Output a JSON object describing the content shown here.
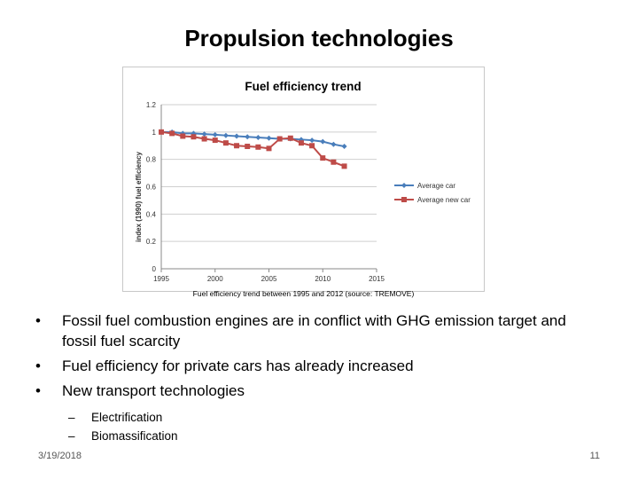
{
  "slide": {
    "title": "Propulsion technologies",
    "caption": "Fuel efficiency trend between 1995 and 2012 (source: TREMOVE)",
    "bullets": [
      "Fossil fuel combustion engines are in conflict with GHG emission target and fossil fuel scarcity",
      "Fuel efficiency for private cars has already increased",
      "New transport technologies"
    ],
    "sub_bullets": [
      "Electrification",
      "Biomassification"
    ],
    "footer": {
      "date": "3/19/2018",
      "page": "11"
    }
  },
  "chart_data": {
    "type": "line",
    "title": "Fuel efficiency trend",
    "xlabel": "",
    "ylabel": "index (1990) fuel efficiency",
    "xlim": [
      1995,
      2015
    ],
    "ylim": [
      0,
      1.2
    ],
    "x_ticks": [
      "1995",
      "2000",
      "2005",
      "2010",
      "2015"
    ],
    "y_ticks": [
      "0",
      "0.2",
      "0.4",
      "0.6",
      "0.8",
      "1",
      "1.2"
    ],
    "x_tick_values": [
      1995,
      2000,
      2005,
      2010,
      2015
    ],
    "y_tick_values": [
      0,
      0.2,
      0.4,
      0.6,
      0.8,
      1.0,
      1.2
    ],
    "grid": "horizontal",
    "legend_position": "right",
    "x": [
      1995,
      1996,
      1997,
      1998,
      1999,
      2000,
      2001,
      2002,
      2003,
      2004,
      2005,
      2006,
      2007,
      2008,
      2009,
      2010,
      2011,
      2012
    ],
    "series": [
      {
        "name": "Average car",
        "color": "#4a7ebb",
        "marker": "diamond",
        "values": [
          1.0,
          1.0,
          0.99,
          0.99,
          0.985,
          0.98,
          0.975,
          0.97,
          0.965,
          0.96,
          0.955,
          0.95,
          0.95,
          0.945,
          0.94,
          0.93,
          0.91,
          0.895
        ]
      },
      {
        "name": "Average new car",
        "color": "#be4b48",
        "marker": "square",
        "values": [
          1.0,
          0.99,
          0.97,
          0.965,
          0.95,
          0.94,
          0.92,
          0.9,
          0.895,
          0.89,
          0.88,
          0.95,
          0.955,
          0.92,
          0.9,
          0.81,
          0.78,
          0.75
        ]
      }
    ]
  }
}
